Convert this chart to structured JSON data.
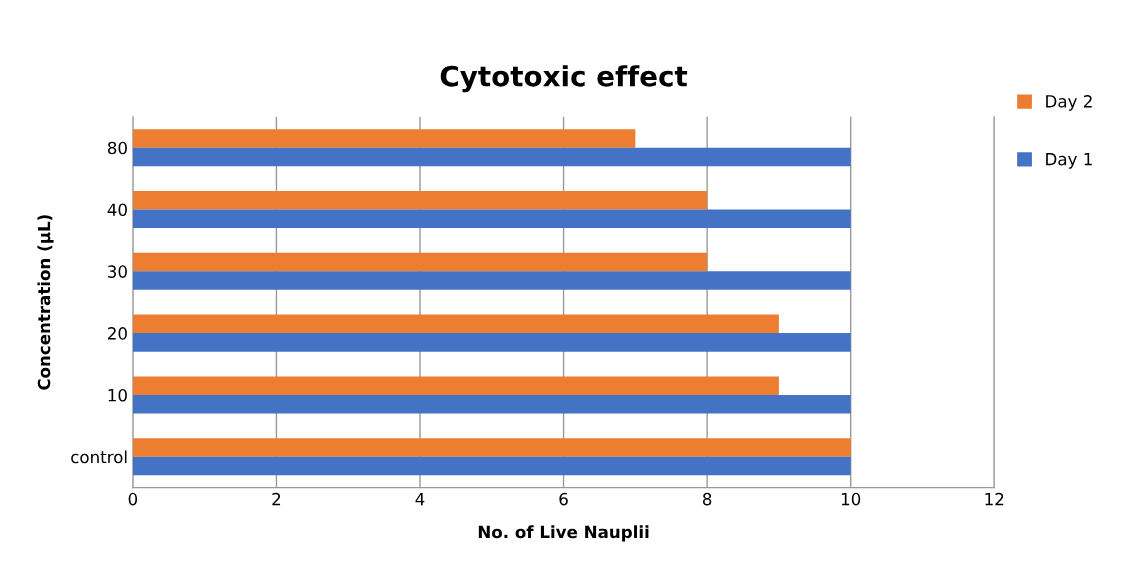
{
  "chart_data": {
    "type": "bar",
    "orientation": "horizontal",
    "title": "Cytotoxic effect",
    "xlabel": "No. of Live Nauplii",
    "ylabel": "Concentration (µL)",
    "categories": [
      "80",
      "40",
      "30",
      "20",
      "10",
      "control"
    ],
    "series": [
      {
        "name": "Day 2",
        "color": "#ed7d31",
        "values": [
          7,
          8,
          8,
          9,
          9,
          10
        ]
      },
      {
        "name": "Day 1",
        "color": "#4472c4",
        "values": [
          10,
          10,
          10,
          10,
          10,
          10
        ]
      }
    ],
    "xlim": [
      0,
      12
    ],
    "xticks": [
      0,
      2,
      4,
      6,
      8,
      10,
      12
    ],
    "grid": "x",
    "legend": "right"
  }
}
